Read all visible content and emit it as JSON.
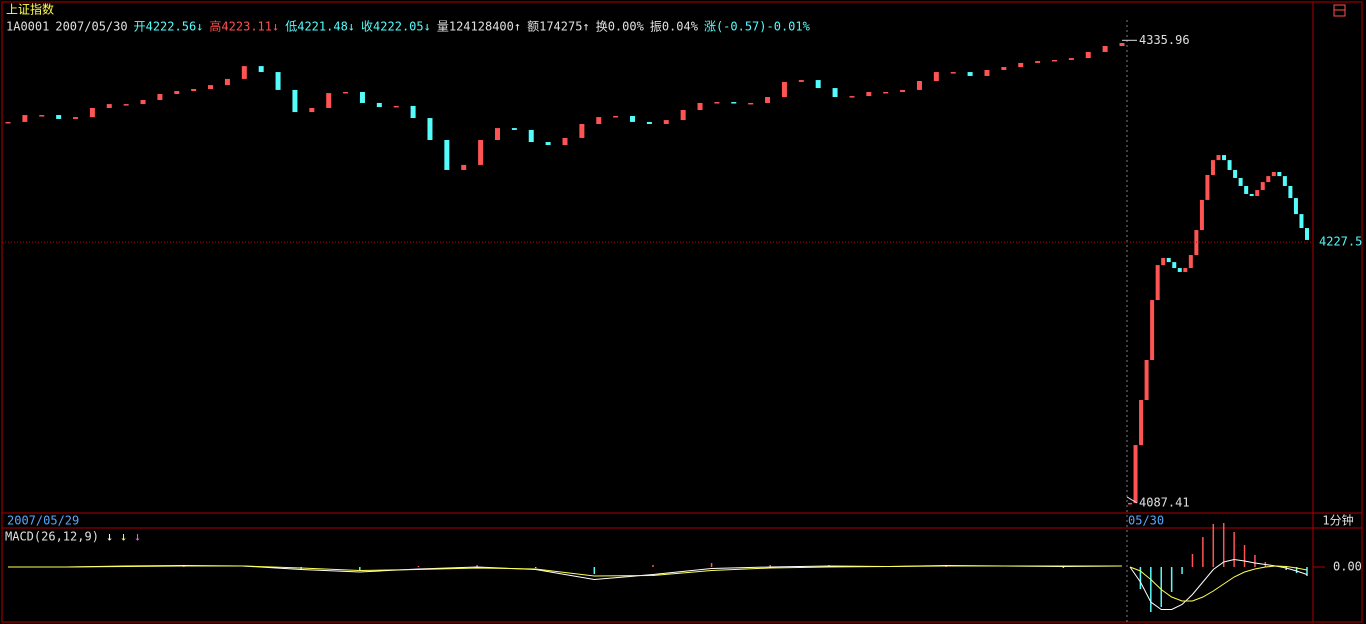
{
  "header": {
    "title": "上证指数",
    "title_color": "#ffff54",
    "items": [
      {
        "text": "1A0001",
        "color": "#e0e0e0"
      },
      {
        "text": "2007/05/30",
        "color": "#e0e0e0"
      },
      {
        "text": "开4222.56↓",
        "color": "#54fcfc"
      },
      {
        "text": "高4223.11↓",
        "color": "#ff5050"
      },
      {
        "text": "低4221.48↓",
        "color": "#54fcfc"
      },
      {
        "text": "收4222.05↓",
        "color": "#54fcfc"
      },
      {
        "text": "量124128400↑",
        "color": "#e0e0e0"
      },
      {
        "text": "额174275↑",
        "color": "#e0e0e0"
      },
      {
        "text": "换0.00%",
        "color": "#e0e0e0"
      },
      {
        "text": "振0.04%",
        "color": "#e0e0e0"
      },
      {
        "text": "涨(-0.57)-0.01%",
        "color": "#54fcfc"
      }
    ]
  },
  "chart_data": {
    "type": "candlestick",
    "ylim": [
      4082,
      4356
    ],
    "up_color": "#ff5454",
    "down_color": "#54fcfc",
    "days": [
      {
        "date": "2007/05/29",
        "closes": [
          4292.1,
          4295.8,
          4295.8,
          4293.7,
          4294.7,
          4299.6,
          4301.7,
          4301.7,
          4303.9,
          4307.1,
          4308.7,
          4309.8,
          4311.9,
          4315.2,
          4322.1,
          4318.9,
          4309.3,
          4297.4,
          4299.6,
          4307.6,
          4308.2,
          4302.3,
          4300.1,
          4300.7,
          4294.2,
          4282.4,
          4266.3,
          4269.0,
          4282.4,
          4288.8,
          4287.8,
          4281.3,
          4279.7,
          4283.5,
          4291.0,
          4294.7,
          4295.3,
          4292.1,
          4291.0,
          4293.1,
          4298.5,
          4302.3,
          4302.8,
          4302.3,
          4302.3,
          4305.5,
          4313.6,
          4314.6,
          4310.3,
          4305.5,
          4306.0,
          4308.2,
          4308.2,
          4309.3,
          4314.1,
          4318.9,
          4318.9,
          4316.8,
          4320.0,
          4321.6,
          4323.8,
          4324.8,
          4325.4,
          4326.4,
          4329.7,
          4332.9,
          4334.5
        ]
      },
      {
        "date": "05/30",
        "closes": [
          4087.41,
          4118.5,
          4142.7,
          4164.2,
          4196.4,
          4215.2,
          4219.0,
          4216.8,
          4213.6,
          4211.5,
          4213.6,
          4220.6,
          4234.0,
          4250.2,
          4263.6,
          4271.6,
          4274.3,
          4271.6,
          4266.3,
          4262.0,
          4257.7,
          4253.4,
          4252.3,
          4255.5,
          4259.8,
          4263.0,
          4265.2,
          4263.0,
          4257.7,
          4251.2,
          4242.6,
          4235.1,
          4228.7
        ]
      }
    ],
    "high_label": 4335.96,
    "low_label": 4087.41,
    "ref_price": 4227.5,
    "period": "1分钟"
  },
  "macd": {
    "label": "MACD(26,12,9)",
    "arrows": [
      {
        "text": "↓",
        "color": "#ffffff"
      },
      {
        "text": "↓",
        "color": "#ffff54"
      },
      {
        "text": "↓",
        "color": "#ff54ff"
      }
    ],
    "ylim": [
      -10.6,
      7.4
    ],
    "zero": {
      "value": 0,
      "label": "0.00"
    },
    "dif_color": "#ffffff",
    "dea_color": "#ffff54",
    "days": [
      {
        "dif": [
          0,
          0,
          0.2,
          0.3,
          0.2,
          -0.5,
          -1,
          -0.4,
          0,
          -0.5,
          -2.5,
          -1.5,
          -0.3,
          0,
          0.2,
          0.1,
          0.3,
          0.2,
          0.1,
          0.2
        ],
        "dea": [
          0,
          0,
          0.1,
          0.2,
          0.2,
          -0.2,
          -0.7,
          -0.5,
          -0.2,
          -0.4,
          -1.8,
          -1.7,
          -0.7,
          -0.2,
          0,
          0.1,
          0.2,
          0.2,
          0.2,
          0.2
        ],
        "hist": [
          0,
          0,
          0.2,
          0.2,
          0,
          -0.6,
          -0.6,
          0.2,
          0.4,
          -0.2,
          -1.4,
          0.4,
          0.8,
          0.4,
          0.4,
          0,
          0.2,
          0,
          -0.2,
          0
        ]
      },
      {
        "dif": [
          0,
          -3,
          -7,
          -8.5,
          -8.5,
          -7.5,
          -5.5,
          -3,
          -0.5,
          1,
          1.5,
          1.2,
          0.8,
          0.5,
          0.2,
          -0.2,
          -0.8,
          -1.5
        ],
        "dea": [
          0,
          -0.8,
          -2.5,
          -4.5,
          -6,
          -6.8,
          -6.8,
          -6,
          -4.8,
          -3.4,
          -2,
          -1,
          -0.4,
          0,
          0.2,
          0.1,
          -0.2,
          -0.6
        ],
        "hist": [
          0,
          -4.4,
          -9,
          -8,
          -5,
          -1.4,
          2.6,
          6,
          8.6,
          8.8,
          7,
          4.4,
          2.4,
          1,
          0,
          -0.6,
          -1.2,
          -1.8
        ]
      }
    ]
  }
}
